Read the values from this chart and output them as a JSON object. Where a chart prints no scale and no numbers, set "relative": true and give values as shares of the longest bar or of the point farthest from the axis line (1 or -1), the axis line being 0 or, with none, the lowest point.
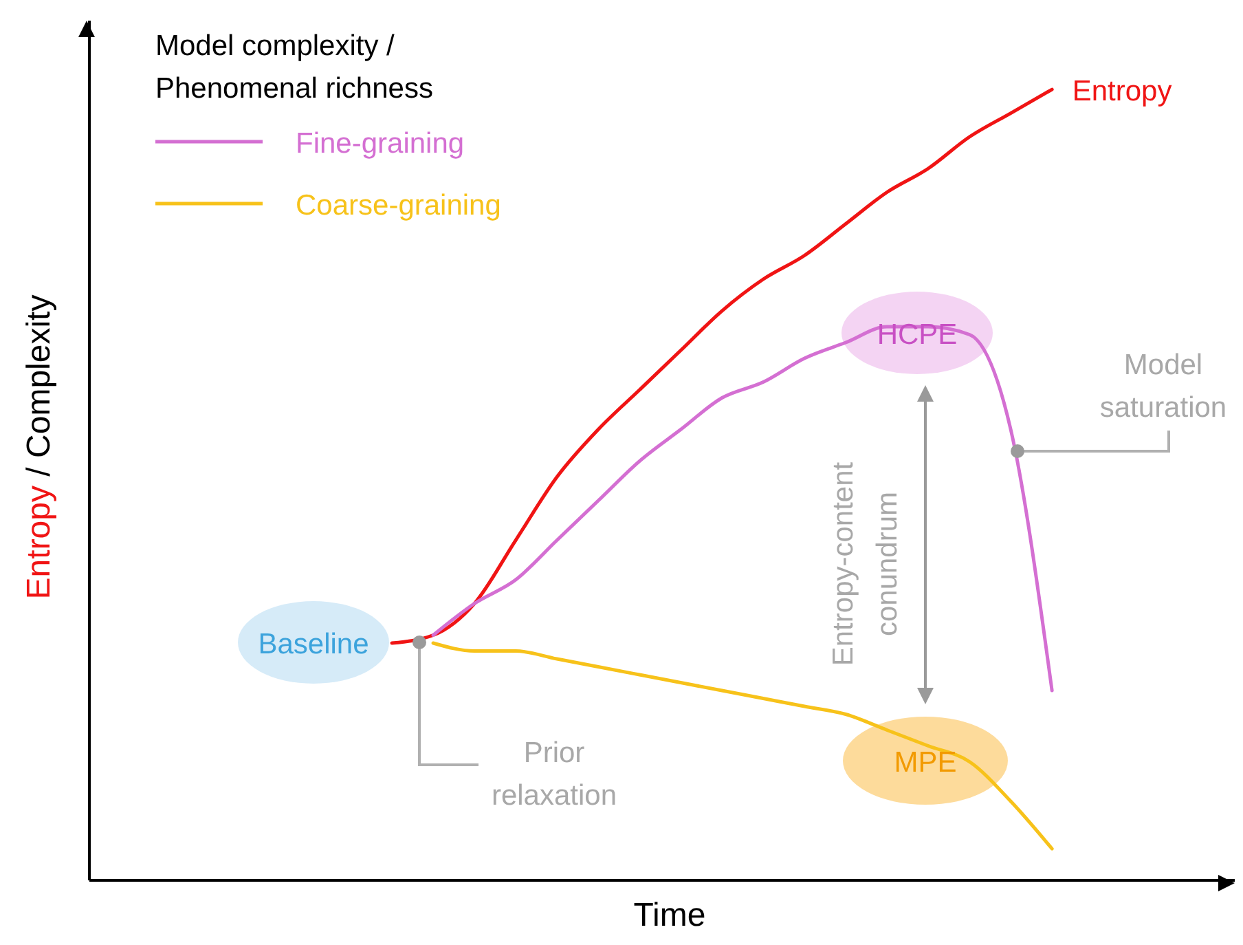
{
  "chart_data": {
    "type": "line",
    "relative": true,
    "xlabel": "Time",
    "ylabel": "Entropy / Complexity",
    "legend_title": "Model complexity / Phenomenal richness",
    "legend": "top left",
    "categories": [
      null,
      null,
      null,
      null,
      null,
      null,
      null,
      null,
      null,
      null,
      null,
      null,
      null,
      null,
      null,
      null,
      null,
      null,
      null,
      null,
      null,
      null,
      null,
      null,
      null,
      null,
      null,
      null
    ],
    "series": [
      {
        "name": "Entropy",
        "color": "#f01414",
        "values": [
          null,
          null,
          null,
          null,
          null,
          null,
          null,
          0.3,
          0.31,
          0.35,
          0.43,
          0.51,
          0.57,
          0.62,
          0.67,
          0.72,
          0.76,
          0.79,
          0.83,
          0.87,
          0.9,
          0.94,
          0.97,
          1.0,
          null,
          null,
          null,
          null
        ]
      },
      {
        "name": "Fine-graining",
        "color": "#d46fd2",
        "values": [
          null,
          null,
          null,
          null,
          null,
          null,
          null,
          null,
          0.31,
          0.35,
          0.38,
          0.43,
          0.48,
          0.53,
          0.57,
          0.61,
          0.63,
          0.66,
          0.68,
          0.7,
          0.7,
          0.69,
          0.57,
          0.24,
          null,
          null,
          null,
          null
        ]
      },
      {
        "name": "Coarse-graining",
        "color": "#f7c21a",
        "values": [
          null,
          null,
          null,
          null,
          null,
          null,
          null,
          null,
          0.3,
          0.29,
          0.29,
          0.28,
          0.27,
          0.26,
          0.25,
          0.24,
          0.23,
          0.22,
          0.21,
          0.19,
          0.17,
          0.15,
          0.1,
          0.04,
          null,
          null,
          null,
          null
        ]
      }
    ],
    "annotations": [
      "Baseline",
      "HCPE",
      "MPE",
      "Prior relaxation",
      "Model saturation",
      "Entropy-content conundrum"
    ]
  }
}
